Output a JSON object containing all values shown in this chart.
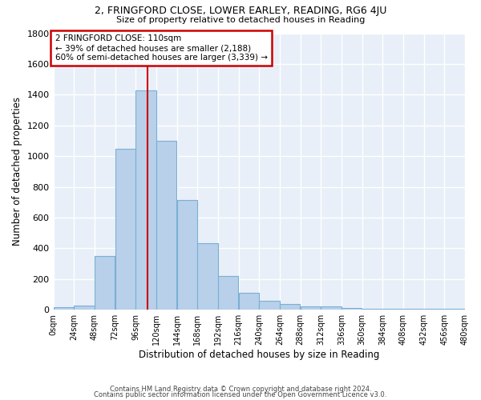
{
  "title1": "2, FRINGFORD CLOSE, LOWER EARLEY, READING, RG6 4JU",
  "title2": "Size of property relative to detached houses in Reading",
  "xlabel": "Distribution of detached houses by size in Reading",
  "ylabel": "Number of detached properties",
  "bar_color": "#b8d0ea",
  "bar_edge_color": "#7aafd4",
  "background_color": "#e8eff8",
  "grid_color": "#ffffff",
  "bin_edges": [
    0,
    24,
    48,
    72,
    96,
    120,
    144,
    168,
    192,
    216,
    240,
    264,
    288,
    312,
    336,
    360,
    384,
    408,
    432,
    456,
    480
  ],
  "bar_heights": [
    15,
    30,
    350,
    1050,
    1430,
    1100,
    715,
    435,
    220,
    110,
    60,
    40,
    25,
    20,
    10,
    5,
    5,
    5,
    5,
    5
  ],
  "vline_x": 110,
  "vline_color": "#cc0000",
  "annotation_lines": [
    "2 FRINGFORD CLOSE: 110sqm",
    "← 39% of detached houses are smaller (2,188)",
    "60% of semi-detached houses are larger (3,339) →"
  ],
  "annotation_box_color": "#cc0000",
  "ylim": [
    0,
    1800
  ],
  "xlim": [
    0,
    480
  ],
  "footer1": "Contains HM Land Registry data © Crown copyright and database right 2024.",
  "footer2": "Contains public sector information licensed under the Open Government Licence v3.0."
}
